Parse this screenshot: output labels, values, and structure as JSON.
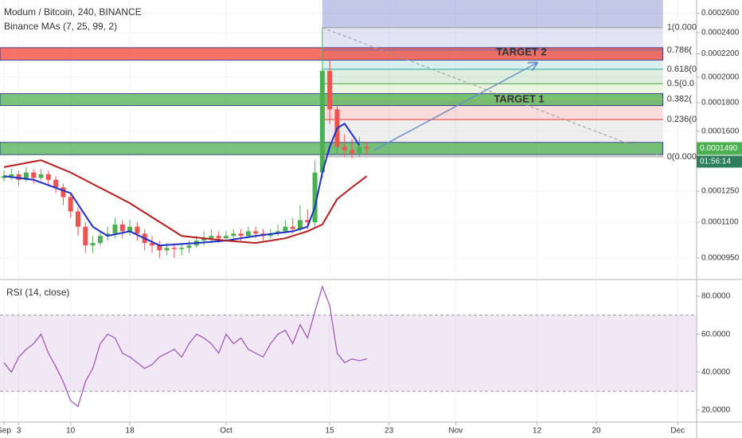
{
  "chart_data": [
    {
      "type": "candlestick",
      "title": "Modum / Bitcoin, 240, BINANCE",
      "subtitle": "Binance MAs (7, 25, 99, 2)",
      "x": [
        "Sep 1",
        "Sep 2",
        "Sep 3",
        "Sep 4",
        "Sep 5",
        "Sep 6",
        "Sep 7",
        "Sep 8",
        "Sep 9",
        "Sep 10",
        "Sep 11",
        "Sep 12",
        "Sep 13",
        "Sep 14",
        "Sep 15",
        "Sep 16",
        "Sep 17",
        "Sep 18",
        "Sep 19",
        "Sep 20",
        "Sep 21",
        "Sep 22",
        "Sep 23",
        "Sep 24",
        "Sep 25",
        "Sep 26",
        "Sep 27",
        "Sep 28",
        "Sep 29",
        "Sep 30",
        "Oct 1",
        "Oct 2",
        "Oct 3",
        "Oct 4",
        "Oct 5",
        "Oct 6",
        "Oct 7",
        "Oct 8",
        "Oct 9",
        "Oct 10",
        "Oct 11",
        "Oct 12",
        "Oct 13",
        "Oct 14",
        "Oct 15",
        "Oct 16",
        "Oct 17",
        "Oct 18",
        "Oct 19",
        "Oct 20"
      ],
      "open": [
        0.000132,
        0.000133,
        0.000134,
        0.000131,
        0.000135,
        0.000132,
        0.000134,
        0.000131,
        0.000127,
        0.000122,
        0.000115,
        0.000108,
        0.0001,
        0.000101,
        0.000104,
        0.000105,
        0.000109,
        0.000106,
        0.000108,
        0.000105,
        0.000101,
        0.0001,
        9.8e-05,
        9.9e-05,
        9.85e-05,
        9.9e-05,
        0.0001,
        0.000102,
        0.000103,
        0.000104,
        0.000103,
        0.000104,
        0.000105,
        0.000104,
        0.000106,
        0.000105,
        0.000104,
        0.000105,
        0.000106,
        0.000108,
        0.000107,
        0.000111,
        0.00011,
        0.000135,
        0.000205,
        0.000175,
        0.00015,
        0.000148,
        0.000146,
        0.00015
      ],
      "high": [
        0.000136,
        0.000137,
        0.000136,
        0.000138,
        0.000137,
        0.000137,
        0.000136,
        0.000133,
        0.000129,
        0.000124,
        0.000117,
        0.00011,
        0.000104,
        0.000106,
        0.000108,
        0.000112,
        0.000111,
        0.000111,
        0.00011,
        0.000107,
        0.000104,
        0.000102,
        0.000101,
        0.000101,
        0.000101,
        0.000102,
        0.000104,
        0.000106,
        0.000107,
        0.000106,
        0.000106,
        0.000107,
        0.000107,
        0.000108,
        0.000108,
        0.000107,
        0.000107,
        0.000109,
        0.000111,
        0.000112,
        0.000118,
        0.000116,
        0.000142,
        0.000245,
        0.000215,
        0.000178,
        0.000158,
        0.000155,
        0.000156,
        0.000153
      ],
      "low": [
        0.00013,
        0.000131,
        0.000128,
        0.00013,
        0.000129,
        0.000131,
        0.000128,
        0.000124,
        0.000118,
        0.000112,
        0.000104,
        9.7e-05,
        9.7e-05,
        0.0001,
        0.000102,
        0.000103,
        0.000103,
        0.000104,
        0.000102,
        9.8e-05,
        9.7e-05,
        9.5e-05,
        9.6e-05,
        9.5e-05,
        9.6e-05,
        9.7e-05,
        9.9e-05,
        0.0001,
        0.000101,
        0.000101,
        0.000102,
        0.000102,
        0.000102,
        0.000103,
        0.000103,
        0.000102,
        0.000103,
        0.000104,
        0.000105,
        0.000105,
        0.000106,
        0.000107,
        0.000108,
        0.000132,
        0.000165,
        0.000145,
        0.000144,
        0.000143,
        0.000144,
        0.000145
      ],
      "close": [
        0.000133,
        0.000134,
        0.000131,
        0.000135,
        0.000132,
        0.000134,
        0.000131,
        0.000127,
        0.000122,
        0.000115,
        0.000108,
        0.0001,
        0.000101,
        0.000104,
        0.000105,
        0.000109,
        0.000106,
        0.000108,
        0.000105,
        0.000101,
        0.0001,
        9.8e-05,
        9.9e-05,
        9.85e-05,
        9.9e-05,
        0.0001,
        0.000102,
        0.000103,
        0.000104,
        0.000103,
        0.000104,
        0.000105,
        0.000104,
        0.000106,
        0.000105,
        0.000104,
        0.000105,
        0.000106,
        0.000108,
        0.000107,
        0.000111,
        0.00011,
        0.000135,
        0.000205,
        0.000175,
        0.00015,
        0.000148,
        0.000146,
        0.00015,
        0.000149
      ],
      "up_color": "#4caf50",
      "down_color": "#ef5350",
      "series": [
        {
          "color": "#1e2fc8",
          "x": [
            "Sep 1",
            "Sep 5",
            "Sep 10",
            "Sep 13",
            "Sep 15",
            "Sep 18",
            "Sep 22",
            "Sep 27",
            "Oct 1",
            "Oct 5",
            "Oct 10",
            "Oct 12",
            "Oct 13",
            "Oct 14",
            "Oct 15",
            "Oct 16",
            "Oct 17",
            "Oct 18",
            "Oct 19"
          ],
          "values": [
            0.000133,
            0.000131,
            0.000124,
            0.000108,
            0.000104,
            0.000106,
            0.0001,
            0.000101,
            0.000102,
            0.000104,
            0.000106,
            0.000108,
            0.000117,
            0.000135,
            0.00015,
            0.000162,
            0.000165,
            0.000158,
            0.000151
          ]
        },
        {
          "color": "#b71c1c",
          "x": [
            "Sep 1",
            "Sep 6",
            "Sep 10",
            "Sep 18",
            "Sep 25",
            "Oct 1",
            "Oct 5",
            "Oct 9",
            "Oct 12",
            "Oct 14",
            "Oct 16",
            "Oct 18",
            "Oct 20"
          ],
          "values": [
            0.000138,
            0.000142,
            0.000135,
            0.000119,
            0.000104,
            0.000102,
            0.000101,
            0.000103,
            0.000106,
            0.000109,
            0.000121,
            0.000127,
            0.000133
          ]
        }
      ],
      "log": true,
      "ylim": [
        8.72e-05,
        0.0002745
      ],
      "yticks": [
        {
          "value": 0.00026,
          "label": "0.0002600"
        },
        {
          "value": 0.00024,
          "label": "0.0002400"
        },
        {
          "value": 0.00022,
          "label": "0.0002200"
        },
        {
          "value": 0.0002,
          "label": "0.0002000"
        },
        {
          "value": 0.00018,
          "label": "0.0001800"
        },
        {
          "value": 0.00016,
          "label": "0.0001600"
        },
        {
          "value": 0.000125,
          "label": "0.0001250"
        },
        {
          "value": 0.00011,
          "label": "0.0001100"
        },
        {
          "value": 9.5e-05,
          "label": "0.0000950"
        }
      ],
      "xticks": [
        {
          "value": "Sep 1",
          "label": "Sep"
        },
        {
          "value": "Sep 3",
          "label": "3"
        },
        {
          "value": "Sep 10",
          "label": "10"
        },
        {
          "value": "Sep 18",
          "label": "18"
        },
        {
          "value": "Oct 1",
          "label": "Oct"
        },
        {
          "value": "Oct 15",
          "label": "15"
        },
        {
          "value": "Oct 23",
          "label": "23"
        },
        {
          "value": "Nov 1",
          "label": "Nov"
        },
        {
          "value": "Nov 12",
          "label": "12"
        },
        {
          "value": "Nov 20",
          "label": "20"
        },
        {
          "value": "Dec 1",
          "label": "Dec"
        }
      ],
      "grid": true,
      "zones": [
        {
          "low": 0.0002144,
          "high": 0.0002256,
          "color": "#f44336"
        },
        {
          "low": 0.0001778,
          "high": 0.0001867,
          "color": "#4caf50"
        },
        {
          "low": 0.0001453,
          "high": 0.0001528,
          "color": "#4caf50"
        }
      ],
      "fib": {
        "high": 0.000245,
        "low": 0.000144,
        "x": [
          "Oct 14",
          "Nov 29"
        ],
        "levels": [
          {
            "ratio": 1,
            "label": "1(0.000",
            "color": "#9e9e9e"
          },
          {
            "ratio": 0.786,
            "label": "0.786(",
            "color": "#5c6bc0"
          },
          {
            "ratio": 0.618,
            "label": "0.618(0",
            "color": "#26a69a"
          },
          {
            "ratio": 0.5,
            "label": "0.5(0.0",
            "color": "#43a047"
          },
          {
            "ratio": 0.382,
            "label": "0.382(",
            "color": "#8bc34a"
          },
          {
            "ratio": 0.236,
            "label": "0.236(0",
            "color": "#e53935"
          },
          {
            "ratio": 0,
            "label": "0(0.000",
            "color": "#9e9e9e"
          }
        ]
      },
      "box": {
        "x": [
          "Oct 14",
          "Nov 29"
        ],
        "y": [
          0.000245,
          0.0002745
        ],
        "color": "#7986cb"
      },
      "trend_line": {
        "x": [
          "Oct 21",
          "Nov 12"
        ],
        "y": [
          0.000148,
          0.000212
        ],
        "color": "#6a8fc9"
      },
      "annotations": [
        "TARGET 2",
        "TARGET 1"
      ],
      "last_price": {
        "value": 0.000149,
        "label": "0.0001490"
      },
      "countdown": "01:56:14"
    },
    {
      "type": "line",
      "title": "RSI (14, close)",
      "x": [
        "Sep 1",
        "Sep 2",
        "Sep 3",
        "Sep 4",
        "Sep 5",
        "Sep 6",
        "Sep 7",
        "Sep 8",
        "Sep 9",
        "Sep 10",
        "Sep 11",
        "Sep 12",
        "Sep 13",
        "Sep 14",
        "Sep 15",
        "Sep 16",
        "Sep 17",
        "Sep 18",
        "Sep 19",
        "Sep 20",
        "Sep 21",
        "Sep 22",
        "Sep 23",
        "Sep 24",
        "Sep 25",
        "Sep 26",
        "Sep 27",
        "Sep 28",
        "Sep 29",
        "Sep 30",
        "Oct 1",
        "Oct 2",
        "Oct 3",
        "Oct 4",
        "Oct 5",
        "Oct 6",
        "Oct 7",
        "Oct 8",
        "Oct 9",
        "Oct 10",
        "Oct 11",
        "Oct 12",
        "Oct 13",
        "Oct 14",
        "Oct 15",
        "Oct 16",
        "Oct 17",
        "Oct 18",
        "Oct 19",
        "Oct 20"
      ],
      "values": [
        45,
        40,
        48,
        52,
        55,
        60,
        50,
        43,
        35,
        25,
        22,
        35,
        42,
        55,
        60,
        58,
        50,
        48,
        45,
        42,
        44,
        48,
        50,
        52,
        48,
        55,
        60,
        58,
        55,
        50,
        60,
        55,
        58,
        52,
        50,
        48,
        55,
        60,
        62,
        55,
        65,
        58,
        72,
        85,
        75,
        50,
        45,
        47,
        46,
        47
      ],
      "color": "#9c4fb5",
      "ylim": [
        13.75,
        88.33
      ],
      "yticks": [
        {
          "value": 80,
          "label": "80.0000"
        },
        {
          "value": 60,
          "label": "60.0000"
        },
        {
          "value": 40,
          "label": "40.0000"
        },
        {
          "value": 20,
          "label": "20.0000"
        }
      ],
      "band": [
        30,
        70
      ]
    }
  ]
}
